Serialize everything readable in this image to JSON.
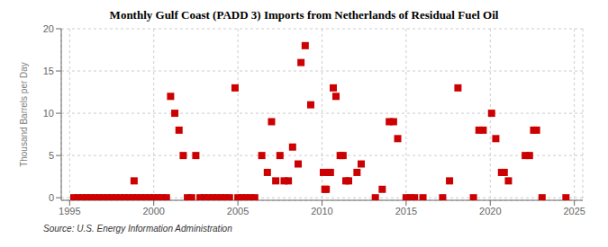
{
  "chart_data": {
    "type": "scatter",
    "title": "Monthly Gulf Coast (PADD 3) Imports from Netherlands of Residual Fuel Oil",
    "ylabel": "Thousand Barrels per Day",
    "annotations": [
      "Source: U.S. Energy Information Administration"
    ],
    "xlim": [
      1994.5,
      2025.5
    ],
    "ylim": [
      -0.3,
      20
    ],
    "xticks": [
      1995,
      2000,
      2005,
      2010,
      2015,
      2020,
      2025
    ],
    "yticks": [
      0,
      5,
      10,
      15,
      20
    ],
    "color": "#cc0000",
    "marker": "square",
    "grid": true,
    "x": [
      1995.25,
      1995.5,
      1995.75,
      1996.0,
      1996.25,
      1996.5,
      1996.75,
      1997.0,
      1997.25,
      1997.5,
      1997.75,
      1998.0,
      1998.25,
      1998.5,
      1998.75,
      1998.83,
      1999.0,
      1999.25,
      1999.5,
      1999.75,
      2000.0,
      2000.25,
      2000.5,
      2000.75,
      2001.0,
      2001.25,
      2001.5,
      2001.75,
      2002.0,
      2002.25,
      2002.5,
      2002.75,
      2003.0,
      2003.25,
      2003.5,
      2003.75,
      2004.0,
      2004.25,
      2004.5,
      2004.83,
      2005.0,
      2005.25,
      2005.5,
      2005.75,
      2006.0,
      2006.42,
      2006.75,
      2007.0,
      2007.25,
      2007.5,
      2007.75,
      2008.0,
      2008.25,
      2008.58,
      2008.75,
      2009.0,
      2009.33,
      2010.08,
      2010.17,
      2010.25,
      2010.42,
      2010.5,
      2010.67,
      2010.83,
      2011.08,
      2011.25,
      2011.42,
      2011.58,
      2012.08,
      2012.33,
      2013.17,
      2013.58,
      2014.0,
      2014.25,
      2014.5,
      2015.0,
      2015.25,
      2015.5,
      2016.0,
      2017.17,
      2017.58,
      2018.08,
      2019.0,
      2019.33,
      2019.58,
      2020.08,
      2020.33,
      2020.67,
      2020.83,
      2021.08,
      2022.08,
      2022.33,
      2022.58,
      2022.75,
      2023.08,
      2024.5
    ],
    "values": [
      0.0,
      0.0,
      0.0,
      0.0,
      0.0,
      0.0,
      0.0,
      0.0,
      0.0,
      0.0,
      0.0,
      0.0,
      0.0,
      0.0,
      0.0,
      2.0,
      0.0,
      0.0,
      0.0,
      0.0,
      0.0,
      0.0,
      0.0,
      0.0,
      12.0,
      10.0,
      8.0,
      5.0,
      0.0,
      0.0,
      5.0,
      0.0,
      0.0,
      0.0,
      0.0,
      0.0,
      0.0,
      0.0,
      0.0,
      13.0,
      0.0,
      0.0,
      0.0,
      0.0,
      0.0,
      5.0,
      3.0,
      9.0,
      2.0,
      5.0,
      2.0,
      2.0,
      6.0,
      4.0,
      16.0,
      18.0,
      11.0,
      3.0,
      1.0,
      1.0,
      3.0,
      3.0,
      13.0,
      12.0,
      5.0,
      5.0,
      2.0,
      2.0,
      3.0,
      4.0,
      0.0,
      1.0,
      9.0,
      9.0,
      7.0,
      0.0,
      0.0,
      0.0,
      0.0,
      0.0,
      2.0,
      13.0,
      0.0,
      8.0,
      8.0,
      10.0,
      7.0,
      3.0,
      3.0,
      2.0,
      5.0,
      5.0,
      8.0,
      8.0,
      0.0,
      0.0
    ]
  }
}
